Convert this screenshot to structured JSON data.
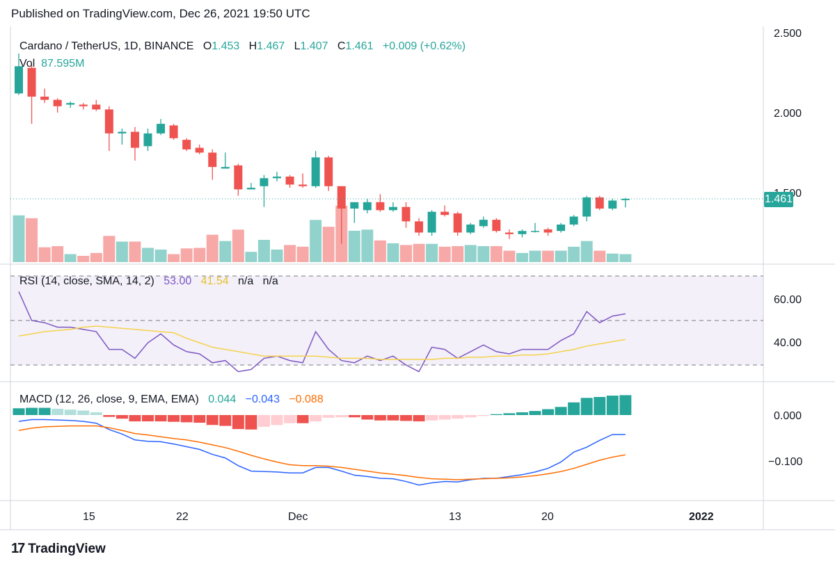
{
  "published": "Published on TradingView.com, Dec 26, 2021 19:50 UTC",
  "header": {
    "pair": "Cardano / TetherUS, 1D, BINANCE",
    "o_label": "O",
    "o": "1.453",
    "h_label": "H",
    "h": "1.467",
    "l_label": "L",
    "l": "1.407",
    "c_label": "C",
    "c": "1.461",
    "change": "+0.009 (+0.62%)",
    "vol_label": "Vol",
    "vol": "87.595M"
  },
  "rsi_legend": {
    "label": "RSI (14, close, SMA, 14, 2)",
    "rsi": "53.00",
    "sma": "41.54",
    "na1": "n/a",
    "na2": "n/a"
  },
  "macd_legend": {
    "label": "MACD (12, 26, close, 9, EMA, EMA)",
    "hist": "0.044",
    "macd": "−0.043",
    "signal": "−0.088"
  },
  "price_tag": "1.461",
  "footer": {
    "brand": "TradingView",
    "logo": "17"
  },
  "colors": {
    "up": "#26a69a",
    "down": "#ef5350",
    "rsi": "#7e57c2",
    "rsi_sma": "#f5d24a",
    "macd": "#2962ff",
    "signal": "#ff6d00"
  },
  "chart_data": [
    {
      "type": "candlestick",
      "title": "Cardano / TetherUS, 1D, BINANCE",
      "x_ticks": [
        "15",
        "22",
        "Dec",
        "13",
        "20",
        "2022"
      ],
      "y_ticks": [
        "2.500",
        "2.000",
        "1.500"
      ],
      "ylim": [
        1.23,
        2.55
      ],
      "candles": [
        {
          "o": 2.12,
          "h": 2.37,
          "l": 2.11,
          "c": 2.29
        },
        {
          "o": 2.28,
          "h": 2.3,
          "l": 1.93,
          "c": 2.1
        },
        {
          "o": 2.1,
          "h": 2.15,
          "l": 2.06,
          "c": 2.08
        },
        {
          "o": 2.08,
          "h": 2.09,
          "l": 2.0,
          "c": 2.04
        },
        {
          "o": 2.05,
          "h": 2.07,
          "l": 2.03,
          "c": 2.06
        },
        {
          "o": 2.05,
          "h": 2.06,
          "l": 2.02,
          "c": 2.04
        },
        {
          "o": 2.05,
          "h": 2.08,
          "l": 2.01,
          "c": 2.02
        },
        {
          "o": 2.02,
          "h": 2.04,
          "l": 1.76,
          "c": 1.87
        },
        {
          "o": 1.87,
          "h": 1.9,
          "l": 1.8,
          "c": 1.88
        },
        {
          "o": 1.88,
          "h": 1.91,
          "l": 1.7,
          "c": 1.78
        },
        {
          "o": 1.79,
          "h": 1.9,
          "l": 1.76,
          "c": 1.87
        },
        {
          "o": 1.87,
          "h": 1.96,
          "l": 1.86,
          "c": 1.93
        },
        {
          "o": 1.92,
          "h": 1.93,
          "l": 1.83,
          "c": 1.84
        },
        {
          "o": 1.83,
          "h": 1.84,
          "l": 1.76,
          "c": 1.77
        },
        {
          "o": 1.78,
          "h": 1.8,
          "l": 1.74,
          "c": 1.75
        },
        {
          "o": 1.75,
          "h": 1.77,
          "l": 1.58,
          "c": 1.66
        },
        {
          "o": 1.65,
          "h": 1.75,
          "l": 1.65,
          "c": 1.66
        },
        {
          "o": 1.67,
          "h": 1.68,
          "l": 1.48,
          "c": 1.52
        },
        {
          "o": 1.52,
          "h": 1.56,
          "l": 1.52,
          "c": 1.53
        },
        {
          "o": 1.54,
          "h": 1.61,
          "l": 1.41,
          "c": 1.59
        },
        {
          "o": 1.59,
          "h": 1.63,
          "l": 1.57,
          "c": 1.6
        },
        {
          "o": 1.6,
          "h": 1.61,
          "l": 1.53,
          "c": 1.55
        },
        {
          "o": 1.55,
          "h": 1.62,
          "l": 1.53,
          "c": 1.54
        },
        {
          "o": 1.54,
          "h": 1.76,
          "l": 1.53,
          "c": 1.72
        },
        {
          "o": 1.72,
          "h": 1.73,
          "l": 1.51,
          "c": 1.54
        },
        {
          "o": 1.54,
          "h": 1.54,
          "l": 1.18,
          "c": 1.4
        },
        {
          "o": 1.4,
          "h": 1.44,
          "l": 1.31,
          "c": 1.44
        },
        {
          "o": 1.39,
          "h": 1.46,
          "l": 1.37,
          "c": 1.44
        },
        {
          "o": 1.44,
          "h": 1.49,
          "l": 1.38,
          "c": 1.39
        },
        {
          "o": 1.39,
          "h": 1.44,
          "l": 1.38,
          "c": 1.41
        },
        {
          "o": 1.41,
          "h": 1.44,
          "l": 1.28,
          "c": 1.32
        },
        {
          "o": 1.32,
          "h": 1.34,
          "l": 1.23,
          "c": 1.25
        },
        {
          "o": 1.25,
          "h": 1.39,
          "l": 1.23,
          "c": 1.38
        },
        {
          "o": 1.38,
          "h": 1.42,
          "l": 1.35,
          "c": 1.36
        },
        {
          "o": 1.37,
          "h": 1.38,
          "l": 1.23,
          "c": 1.25
        },
        {
          "o": 1.25,
          "h": 1.31,
          "l": 1.24,
          "c": 1.3
        },
        {
          "o": 1.29,
          "h": 1.35,
          "l": 1.28,
          "c": 1.33
        },
        {
          "o": 1.33,
          "h": 1.34,
          "l": 1.25,
          "c": 1.26
        },
        {
          "o": 1.25,
          "h": 1.27,
          "l": 1.21,
          "c": 1.24
        },
        {
          "o": 1.24,
          "h": 1.27,
          "l": 1.22,
          "c": 1.26
        },
        {
          "o": 1.26,
          "h": 1.31,
          "l": 1.25,
          "c": 1.26
        },
        {
          "o": 1.27,
          "h": 1.28,
          "l": 1.23,
          "c": 1.25
        },
        {
          "o": 1.26,
          "h": 1.31,
          "l": 1.25,
          "c": 1.3
        },
        {
          "o": 1.3,
          "h": 1.36,
          "l": 1.29,
          "c": 1.35
        },
        {
          "o": 1.35,
          "h": 1.48,
          "l": 1.32,
          "c": 1.47
        },
        {
          "o": 1.47,
          "h": 1.48,
          "l": 1.39,
          "c": 1.4
        },
        {
          "o": 1.4,
          "h": 1.46,
          "l": 1.39,
          "c": 1.45
        },
        {
          "o": 1.453,
          "h": 1.467,
          "l": 1.407,
          "c": 1.461
        }
      ],
      "volume": [
        0.82,
        0.77,
        0.26,
        0.28,
        0.14,
        0.11,
        0.16,
        0.46,
        0.36,
        0.36,
        0.25,
        0.22,
        0.14,
        0.24,
        0.25,
        0.48,
        0.37,
        0.57,
        0.18,
        0.39,
        0.22,
        0.3,
        0.27,
        0.74,
        0.62,
        0.99,
        0.55,
        0.57,
        0.38,
        0.33,
        0.3,
        0.32,
        0.32,
        0.27,
        0.28,
        0.3,
        0.28,
        0.28,
        0.2,
        0.16,
        0.2,
        0.2,
        0.2,
        0.27,
        0.37,
        0.2,
        0.15,
        0.14
      ]
    },
    {
      "type": "line",
      "title": "RSI (14, close, SMA, 14, 2)",
      "y_ticks": [
        "60.00",
        "40.00"
      ],
      "ylim": [
        25,
        75
      ],
      "levels": [
        70,
        50,
        30
      ],
      "series": [
        {
          "values": [
            63,
            50,
            49,
            47,
            47,
            46,
            45,
            37,
            37,
            33,
            40,
            44,
            39,
            36,
            35,
            31,
            32,
            27,
            28,
            33,
            34,
            32,
            31,
            45,
            37,
            32,
            31,
            34,
            32,
            34,
            30,
            27,
            38,
            37,
            33,
            36,
            39,
            36,
            35,
            37,
            37,
            37,
            41,
            44,
            54,
            49,
            52,
            53
          ]
        },
        {
          "values": [
            43,
            44,
            45,
            45.5,
            46,
            47,
            47.5,
            47,
            46.5,
            46,
            45.5,
            45,
            44.5,
            42,
            40,
            38,
            37,
            36,
            35,
            34,
            34,
            34,
            34,
            34,
            33.5,
            33,
            33,
            33,
            32.5,
            32.5,
            32.5,
            32.5,
            32.5,
            33,
            33,
            33.5,
            33.5,
            34,
            34,
            34.5,
            34.5,
            35,
            36,
            37,
            38.5,
            39.5,
            40.5,
            41.5
          ]
        }
      ]
    },
    {
      "type": "bar+line",
      "title": "MACD (12, 26, close, 9, EMA, EMA)",
      "y_ticks": [
        "0.000",
        "−0.100"
      ],
      "ylim": [
        -0.19,
        0.055
      ],
      "histogram": [
        0.015,
        0.016,
        0.016,
        0.014,
        0.012,
        0.01,
        0.006,
        -0.004,
        -0.008,
        -0.014,
        -0.014,
        -0.014,
        -0.015,
        -0.016,
        -0.017,
        -0.022,
        -0.024,
        -0.031,
        -0.032,
        -0.026,
        -0.022,
        -0.018,
        -0.018,
        -0.014,
        -0.006,
        -0.005,
        -0.005,
        -0.01,
        -0.012,
        -0.012,
        -0.013,
        -0.014,
        -0.012,
        -0.01,
        -0.008,
        -0.005,
        -0.002,
        0.002,
        0.004,
        0.006,
        0.009,
        0.013,
        0.018,
        0.028,
        0.038,
        0.04,
        0.043,
        0.044
      ],
      "series": [
        {
          "values": [
            -0.014,
            -0.01,
            -0.01,
            -0.011,
            -0.012,
            -0.014,
            -0.018,
            -0.032,
            -0.042,
            -0.055,
            -0.058,
            -0.059,
            -0.064,
            -0.07,
            -0.076,
            -0.087,
            -0.095,
            -0.112,
            -0.124,
            -0.125,
            -0.126,
            -0.128,
            -0.128,
            -0.116,
            -0.116,
            -0.124,
            -0.133,
            -0.136,
            -0.14,
            -0.141,
            -0.147,
            -0.155,
            -0.15,
            -0.147,
            -0.148,
            -0.143,
            -0.14,
            -0.14,
            -0.136,
            -0.132,
            -0.126,
            -0.118,
            -0.104,
            -0.082,
            -0.071,
            -0.056,
            -0.043,
            -0.043
          ]
        },
        {
          "values": [
            -0.034,
            -0.029,
            -0.026,
            -0.025,
            -0.024,
            -0.024,
            -0.024,
            -0.028,
            -0.034,
            -0.041,
            -0.044,
            -0.048,
            -0.052,
            -0.055,
            -0.06,
            -0.066,
            -0.072,
            -0.08,
            -0.089,
            -0.097,
            -0.104,
            -0.11,
            -0.112,
            -0.112,
            -0.113,
            -0.116,
            -0.12,
            -0.124,
            -0.128,
            -0.131,
            -0.134,
            -0.138,
            -0.141,
            -0.142,
            -0.143,
            -0.142,
            -0.141,
            -0.14,
            -0.139,
            -0.137,
            -0.134,
            -0.13,
            -0.125,
            -0.118,
            -0.109,
            -0.1,
            -0.093,
            -0.088
          ]
        }
      ]
    }
  ]
}
